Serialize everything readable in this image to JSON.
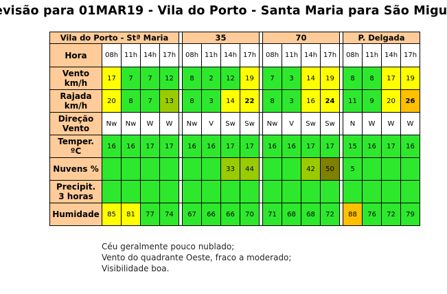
{
  "title": "evisão para 01MAR19 - Vila do Porto - Santa Maria para São Migu",
  "groups": [
    "Vila do Porto - Stª Maria",
    "35",
    "70",
    "P. Delgada"
  ],
  "row_labels": {
    "hora": "Hora",
    "vento": "Vento km/h",
    "rajada": "Rajada km/h",
    "direcao": "Direção Vento",
    "temper": "Temper. ºC",
    "nuvens": "Nuvens %",
    "precip": "Precipit. 3 horas",
    "humidade": "Humidade"
  },
  "hours": [
    "08h",
    "11h",
    "14h",
    "17h",
    "08h",
    "11h",
    "14h",
    "17h",
    "08h",
    "11h",
    "14h",
    "17h",
    "08h",
    "11h",
    "14h",
    "17h"
  ],
  "vento": [
    "17",
    "7",
    "7",
    "12",
    "8",
    "2",
    "12",
    "19",
    "7",
    "3",
    "14",
    "19",
    "8",
    "8",
    "17",
    "19"
  ],
  "rajada": [
    "20",
    "8",
    "7",
    "13",
    "8",
    "3",
    "14",
    "22",
    "8",
    "3",
    "16",
    "24",
    "11",
    "9",
    "20",
    "26"
  ],
  "direcao": [
    "Nw",
    "Nw",
    "W",
    "W",
    "Nw",
    "V",
    "Sw",
    "Sw",
    "Nw",
    "V",
    "Sw",
    "Sw",
    "N",
    "W",
    "W",
    "W"
  ],
  "temper": [
    "16",
    "16",
    "17",
    "17",
    "16",
    "16",
    "17",
    "17",
    "16",
    "16",
    "17",
    "17",
    "15",
    "16",
    "17",
    "16"
  ],
  "nuvens": [
    "",
    "",
    "",
    "",
    "",
    "",
    "33",
    "44",
    "",
    "",
    "42",
    "50",
    "5",
    "",
    "",
    ""
  ],
  "precip": [
    "",
    "",
    "",
    "",
    "",
    "",
    "",
    "",
    "",
    "",
    "",
    "",
    "",
    "",
    "",
    ""
  ],
  "humidade": [
    "85",
    "81",
    "77",
    "74",
    "67",
    "66",
    "66",
    "70",
    "71",
    "68",
    "68",
    "72",
    "88",
    "76",
    "72",
    "79"
  ],
  "notes": [
    "Céu geralmente pouco nublado;",
    "Vento do quadrante Oeste, fraco a moderado;",
    "Visibilidade boa."
  ]
}
